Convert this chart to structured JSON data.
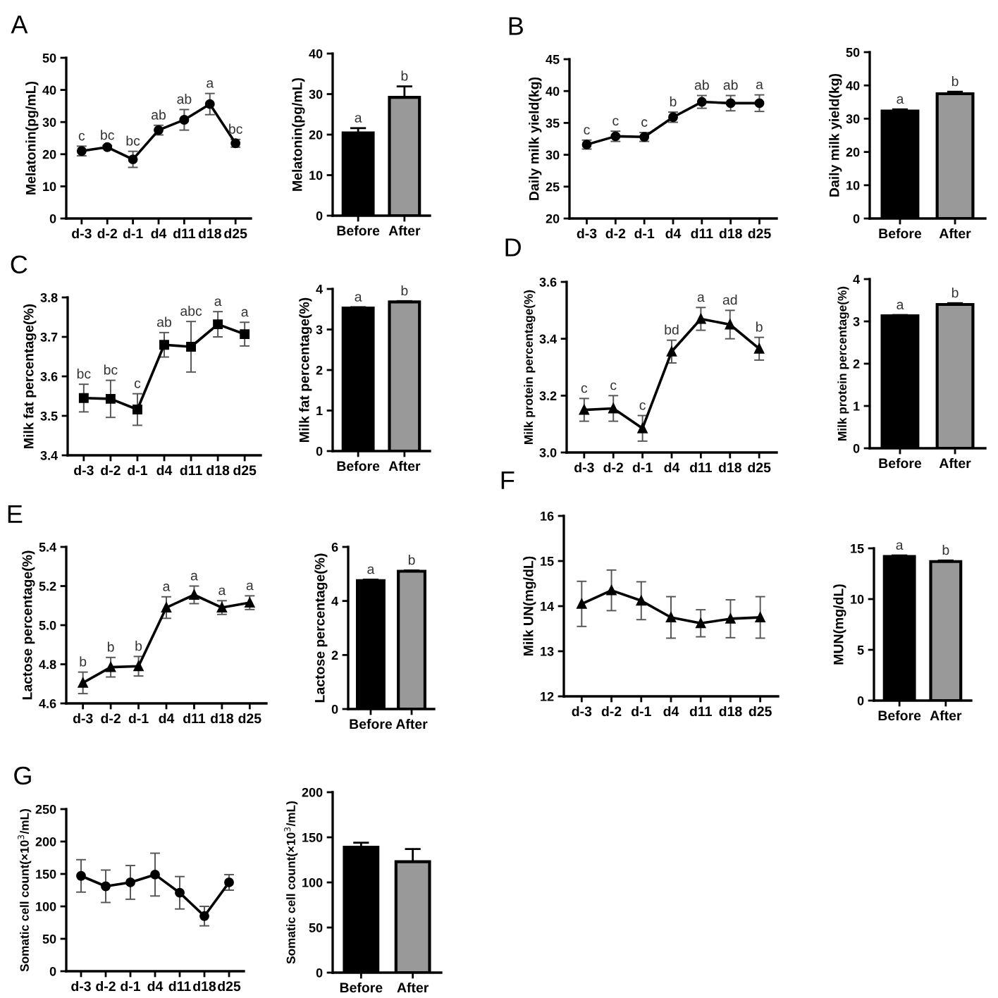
{
  "chart_data": [
    {
      "type": "line",
      "categories": [
        "d-3",
        "d-2",
        "d-1",
        "d4",
        "d11",
        "d18",
        "d25"
      ],
      "ylabel": "Melatonin(pg/mL)",
      "ylim": [
        0,
        50
      ],
      "yticks": [
        0,
        10,
        20,
        30,
        40,
        50
      ],
      "marker": "circle",
      "line_style": "solid",
      "series": [
        {
          "color": "#000000",
          "values": [
            21,
            22.2,
            18.4,
            27.5,
            30.7,
            35.6,
            23.4
          ],
          "errors": [
            1.5,
            0.5,
            2.5,
            1.5,
            3.2,
            3.3,
            1.2
          ]
        }
      ],
      "annotations": [
        "A",
        {
          "text": "c",
          "x": "d-3",
          "y": 22.5
        },
        {
          "text": "bc",
          "x": "d-2",
          "y": 22.7
        },
        {
          "text": "bc",
          "x": "d-1",
          "y": 20.9
        },
        {
          "text": "ab",
          "x": "d4",
          "y": 29
        },
        {
          "text": "ab",
          "x": "d11",
          "y": 33.9
        },
        {
          "text": "a",
          "x": "d18",
          "y": 38.9
        },
        {
          "text": "bc",
          "x": "d25",
          "y": 24.6
        }
      ]
    },
    {
      "type": "bar",
      "categories": [
        "Before",
        "After"
      ],
      "ylabel": "Melatonin(pg/mL)",
      "ylim": [
        0,
        40
      ],
      "yticks": [
        0,
        10,
        20,
        30,
        40
      ],
      "values": [
        20.4,
        29.2
      ],
      "errors": [
        1.2,
        2.7
      ],
      "colors": [
        "#000000",
        "#999999"
      ],
      "annotations": [
        {
          "text": "a",
          "x": "Before",
          "y": 21.6
        },
        {
          "text": "b",
          "x": "After",
          "y": 31.9
        }
      ]
    },
    {
      "type": "line",
      "categories": [
        "d-3",
        "d-2",
        "d-1",
        "d4",
        "d11",
        "d18",
        "d25"
      ],
      "ylabel": "Daily milk yield(kg)",
      "ylim": [
        20,
        45
      ],
      "yticks": [
        20,
        25,
        30,
        35,
        40,
        45
      ],
      "marker": "circle",
      "line_style": "solid",
      "series": [
        {
          "color": "#000000",
          "values": [
            31.6,
            32.9,
            32.8,
            35.9,
            38.3,
            38.1,
            38.1
          ],
          "errors": [
            0.7,
            0.8,
            0.7,
            0.8,
            1.0,
            1.2,
            1.3
          ]
        }
      ],
      "annotations": [
        "B",
        {
          "text": "c",
          "x": "d-3",
          "y": 32.3
        },
        {
          "text": "c",
          "x": "d-2",
          "y": 33.7
        },
        {
          "text": "c",
          "x": "d-1",
          "y": 33.5
        },
        {
          "text": "b",
          "x": "d4",
          "y": 36.7
        },
        {
          "text": "ab",
          "x": "d11",
          "y": 39.3
        },
        {
          "text": "ab",
          "x": "d18",
          "y": 39.3
        },
        {
          "text": "a",
          "x": "d25",
          "y": 39.4
        }
      ]
    },
    {
      "type": "bar",
      "categories": [
        "Before",
        "After"
      ],
      "ylabel": "Daily milk yield(kg)",
      "ylim": [
        0,
        50
      ],
      "yticks": [
        0,
        10,
        20,
        30,
        40,
        50
      ],
      "values": [
        32.3,
        37.5
      ],
      "errors": [
        0.5,
        0.6
      ],
      "colors": [
        "#000000",
        "#999999"
      ],
      "annotations": [
        {
          "text": "a",
          "x": "Before",
          "y": 32.8
        },
        {
          "text": "b",
          "x": "After",
          "y": 38.1
        }
      ]
    },
    {
      "type": "line",
      "categories": [
        "d-3",
        "d-2",
        "d-1",
        "d4",
        "d11",
        "d18",
        "d25"
      ],
      "ylabel": "Milk fat percentage(%)",
      "ylim": [
        3.4,
        3.8
      ],
      "yticks": [
        3.4,
        3.5,
        3.6,
        3.7,
        3.8
      ],
      "marker": "square",
      "line_style": "solid",
      "series": [
        {
          "color": "#000000",
          "values": [
            3.545,
            3.543,
            3.516,
            3.68,
            3.675,
            3.732,
            3.707
          ],
          "errors": [
            0.035,
            0.047,
            0.04,
            0.031,
            0.064,
            0.032,
            0.03
          ]
        }
      ],
      "annotations": [
        "C",
        {
          "text": "bc",
          "x": "d-3",
          "y": 3.58
        },
        {
          "text": "bc",
          "x": "d-2",
          "y": 3.59
        },
        {
          "text": "c",
          "x": "d-1",
          "y": 3.556
        },
        {
          "text": "ab",
          "x": "d4",
          "y": 3.711
        },
        {
          "text": "abc",
          "x": "d11",
          "y": 3.739
        },
        {
          "text": "a",
          "x": "d18",
          "y": 3.764
        },
        {
          "text": "a",
          "x": "d25",
          "y": 3.737
        }
      ]
    },
    {
      "type": "bar",
      "categories": [
        "Before",
        "After"
      ],
      "ylabel": "Milk fat percentage(%)",
      "ylim": [
        0,
        4
      ],
      "yticks": [
        0,
        1,
        2,
        3,
        4
      ],
      "values": [
        3.53,
        3.68
      ],
      "errors": [
        0.02,
        0.02
      ],
      "colors": [
        "#000000",
        "#999999"
      ],
      "annotations": [
        {
          "text": "a",
          "x": "Before",
          "y": 3.55
        },
        {
          "text": "b",
          "x": "After",
          "y": 3.7
        }
      ]
    },
    {
      "type": "line",
      "categories": [
        "d-3",
        "d-2",
        "d-1",
        "d4",
        "d11",
        "d18",
        "d25"
      ],
      "ylabel": "Milk protein percentage(%)",
      "ylim": [
        3.0,
        3.6
      ],
      "yticks": [
        {
          "value": 3.0,
          "label": "3.0"
        },
        3.2,
        3.4,
        3.6
      ],
      "marker": "triangle",
      "line_style": "solid",
      "series": [
        {
          "color": "#000000",
          "values": [
            3.15,
            3.155,
            3.085,
            3.355,
            3.47,
            3.45,
            3.365
          ],
          "errors": [
            0.04,
            0.045,
            0.045,
            0.04,
            0.04,
            0.05,
            0.04
          ]
        }
      ],
      "annotations": [
        "D",
        {
          "text": "c",
          "x": "d-3",
          "y": 3.19
        },
        {
          "text": "c",
          "x": "d-2",
          "y": 3.2
        },
        {
          "text": "c",
          "x": "d-1",
          "y": 3.13
        },
        {
          "text": "bd",
          "x": "d4",
          "y": 3.395
        },
        {
          "text": "a",
          "x": "d11",
          "y": 3.51
        },
        {
          "text": "ad",
          "x": "d18",
          "y": 3.5
        },
        {
          "text": "b",
          "x": "d25",
          "y": 3.405
        }
      ]
    },
    {
      "type": "bar",
      "categories": [
        "Before",
        "After"
      ],
      "ylabel": "Milk protein percentage(%)",
      "ylim": [
        0,
        4
      ],
      "yticks": [
        0,
        1,
        2,
        3,
        4
      ],
      "values": [
        3.13,
        3.4
      ],
      "errors": [
        0.02,
        0.03
      ],
      "colors": [
        "#000000",
        "#999999"
      ],
      "annotations": [
        {
          "text": "a",
          "x": "Before",
          "y": 3.15
        },
        {
          "text": "b",
          "x": "After",
          "y": 3.43
        }
      ]
    },
    {
      "type": "line",
      "categories": [
        "d-3",
        "d-2",
        "d-1",
        "d4",
        "d11",
        "d18",
        "d25"
      ],
      "ylabel": "Lactose percentage(%)",
      "ylim": [
        4.6,
        5.4
      ],
      "yticks": [
        4.6,
        4.8,
        {
          "value": 5.0,
          "label": "5.0"
        },
        5.2,
        5.4
      ],
      "marker": "triangle",
      "line_style": "solid",
      "series": [
        {
          "color": "#000000",
          "values": [
            4.705,
            4.785,
            4.79,
            5.09,
            5.155,
            5.09,
            5.115
          ],
          "errors": [
            0.055,
            0.05,
            0.05,
            0.055,
            0.045,
            0.035,
            0.035
          ]
        }
      ],
      "annotations": [
        "E",
        {
          "text": "b",
          "x": "d-3",
          "y": 4.76
        },
        {
          "text": "b",
          "x": "d-2",
          "y": 4.835
        },
        {
          "text": "b",
          "x": "d-1",
          "y": 4.84
        },
        {
          "text": "a",
          "x": "d4",
          "y": 5.145
        },
        {
          "text": "a",
          "x": "d11",
          "y": 5.2
        },
        {
          "text": "a",
          "x": "d18",
          "y": 5.125
        },
        {
          "text": "a",
          "x": "d25",
          "y": 5.15
        }
      ]
    },
    {
      "type": "bar",
      "categories": [
        "Before",
        "After"
      ],
      "ylabel": "Lactose percentage(%)",
      "ylim": [
        0,
        6
      ],
      "yticks": [
        0,
        2,
        4,
        6
      ],
      "values": [
        4.75,
        5.1
      ],
      "errors": [
        0.04,
        0.03
      ],
      "colors": [
        "#000000",
        "#999999"
      ],
      "annotations": [
        {
          "text": "a",
          "x": "Before",
          "y": 4.79
        },
        {
          "text": "b",
          "x": "After",
          "y": 5.13
        }
      ]
    },
    {
      "type": "line",
      "categories": [
        "d-3",
        "d-2",
        "d-1",
        "d4",
        "d11",
        "d18",
        "d25"
      ],
      "ylabel": "Milk UN(mg/dL)",
      "ylim": [
        12,
        16
      ],
      "yticks": [
        12,
        13,
        14,
        15,
        16
      ],
      "marker": "triangle",
      "line_style": "solid",
      "series": [
        {
          "color": "#000000",
          "values": [
            14.05,
            14.35,
            14.12,
            13.75,
            13.62,
            13.72,
            13.75
          ],
          "errors": [
            0.5,
            0.45,
            0.42,
            0.46,
            0.3,
            0.42,
            0.46
          ]
        }
      ],
      "annotations": [
        "F"
      ]
    },
    {
      "type": "bar",
      "categories": [
        "Before",
        "After"
      ],
      "ylabel": "MUN(mg/dL)",
      "ylim": [
        0,
        15
      ],
      "yticks": [
        0,
        5,
        10,
        15
      ],
      "values": [
        14.2,
        13.7
      ],
      "errors": [
        0.1,
        0.1
      ],
      "colors": [
        "#000000",
        "#999999"
      ],
      "annotations": [
        {
          "text": "a",
          "x": "Before",
          "y": 14.3
        },
        {
          "text": "b",
          "x": "After",
          "y": 13.8
        }
      ]
    },
    {
      "type": "line",
      "categories": [
        "d-3",
        "d-2",
        "d-1",
        "d4",
        "d11",
        "d18",
        "d25"
      ],
      "ylabel": "Somatic cell count(×10$^{3}$/mL)",
      "ylim": [
        0,
        250
      ],
      "yticks": [
        0,
        50,
        100,
        150,
        200,
        250
      ],
      "marker": "circle",
      "line_style": "solid",
      "series": [
        {
          "color": "#000000",
          "values": [
            147,
            131,
            137,
            149,
            121,
            85,
            137
          ],
          "errors": [
            25,
            25,
            26,
            33,
            25,
            15,
            12
          ]
        }
      ],
      "annotations": [
        "G"
      ]
    },
    {
      "type": "bar",
      "categories": [
        "Before",
        "After"
      ],
      "ylabel": "Somatic cell count(×10$^{3}$/mL)",
      "ylim": [
        0,
        200
      ],
      "yticks": [
        0,
        50,
        100,
        150,
        200
      ],
      "values": [
        139,
        123
      ],
      "errors": [
        5,
        14
      ],
      "colors": [
        "#000000",
        "#999999"
      ]
    }
  ]
}
